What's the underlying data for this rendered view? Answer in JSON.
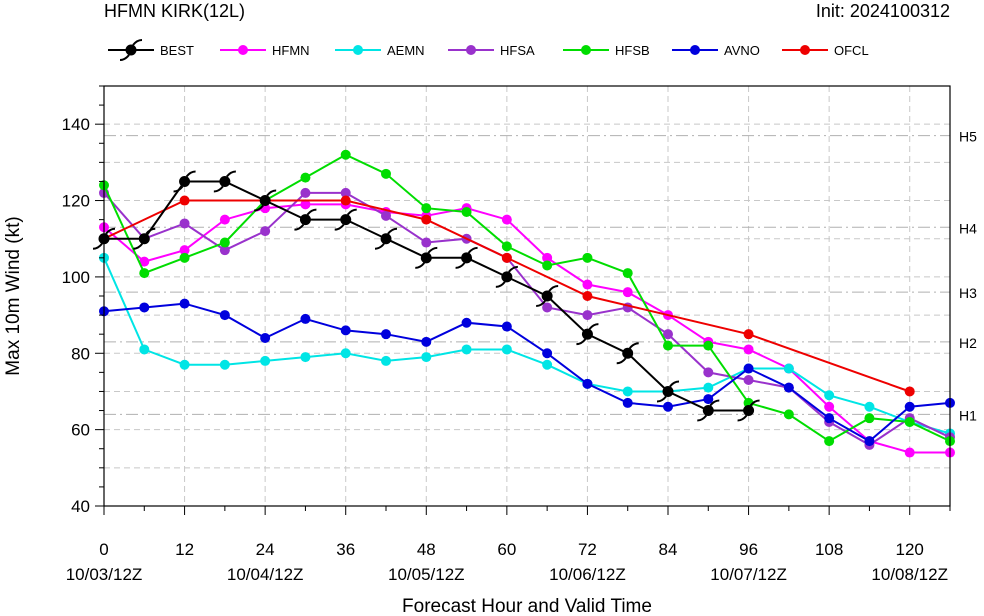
{
  "header": {
    "title": "HFMN KIRK(12L)",
    "init": "Init: 2024100312"
  },
  "chart_data": {
    "type": "line",
    "xlabel": "Forecast Hour and Valid Time",
    "ylabel": "Max 10m Wind (kt)",
    "xlim": [
      0,
      126
    ],
    "ylim": [
      40,
      150
    ],
    "x_ticks": [
      0,
      12,
      24,
      36,
      48,
      60,
      72,
      84,
      96,
      108,
      120
    ],
    "y_ticks": [
      40,
      60,
      80,
      100,
      120,
      140
    ],
    "x_date_labels": [
      {
        "x": 0,
        "label": "10/03/12Z"
      },
      {
        "x": 24,
        "label": "10/04/12Z"
      },
      {
        "x": 48,
        "label": "10/05/12Z"
      },
      {
        "x": 72,
        "label": "10/06/12Z"
      },
      {
        "x": 96,
        "label": "10/07/12Z"
      },
      {
        "x": 120,
        "label": "10/08/12Z"
      }
    ],
    "categories": [
      {
        "label": "H5",
        "threshold": 137
      },
      {
        "label": "H4",
        "threshold": 113
      },
      {
        "label": "H3",
        "threshold": 96
      },
      {
        "label": "H2",
        "threshold": 83
      },
      {
        "label": "H1",
        "threshold": 64
      }
    ],
    "grid": "dashed horizontal and vertical",
    "legend_position": "top",
    "series": [
      {
        "name": "BEST",
        "color": "#000000",
        "marker": "hurricane",
        "x": [
          0,
          6,
          12,
          18,
          24,
          30,
          36,
          42,
          48,
          54,
          60,
          66,
          72,
          78,
          84,
          90,
          96
        ],
        "y": [
          110,
          110,
          125,
          125,
          120,
          115,
          115,
          110,
          105,
          105,
          100,
          95,
          85,
          80,
          70,
          65,
          65
        ]
      },
      {
        "name": "HFMN",
        "color": "#ff00ff",
        "marker": "dot",
        "x": [
          0,
          6,
          12,
          18,
          24,
          30,
          36,
          42,
          48,
          54,
          60,
          66,
          72,
          78,
          84,
          90,
          96,
          102,
          108,
          114,
          120,
          126
        ],
        "y": [
          113,
          104,
          107,
          115,
          118,
          119,
          119,
          117,
          116,
          118,
          115,
          105,
          98,
          96,
          90,
          83,
          81,
          76,
          66,
          57,
          54,
          54
        ]
      },
      {
        "name": "AEMN",
        "color": "#00e5e5",
        "marker": "dot",
        "x": [
          0,
          6,
          12,
          18,
          24,
          30,
          36,
          42,
          48,
          54,
          60,
          66,
          72,
          78,
          84,
          90,
          96,
          102,
          108,
          114,
          120,
          126
        ],
        "y": [
          105,
          81,
          77,
          77,
          78,
          79,
          80,
          78,
          79,
          81,
          81,
          77,
          72,
          70,
          70,
          71,
          76,
          76,
          69,
          66,
          62,
          59
        ]
      },
      {
        "name": "HFSA",
        "color": "#9932cc",
        "marker": "dot",
        "x": [
          0,
          6,
          12,
          18,
          24,
          30,
          36,
          42,
          48,
          54,
          60,
          66,
          72,
          78,
          84,
          90,
          96,
          102,
          108,
          114,
          120,
          126
        ],
        "y": [
          122,
          110,
          114,
          107,
          112,
          122,
          122,
          116,
          109,
          110,
          105,
          92,
          90,
          92,
          85,
          75,
          73,
          71,
          62,
          56,
          63,
          58
        ]
      },
      {
        "name": "HFSB",
        "color": "#00dd00",
        "marker": "dot",
        "x": [
          0,
          6,
          12,
          18,
          24,
          30,
          36,
          42,
          48,
          54,
          60,
          66,
          72,
          78,
          84,
          90,
          96,
          102,
          108,
          114,
          120,
          126
        ],
        "y": [
          124,
          101,
          105,
          109,
          120,
          126,
          132,
          127,
          118,
          117,
          108,
          103,
          105,
          101,
          82,
          82,
          67,
          64,
          57,
          63,
          62,
          57
        ]
      },
      {
        "name": "AVNO",
        "color": "#0000dd",
        "marker": "dot",
        "x": [
          0,
          6,
          12,
          18,
          24,
          30,
          36,
          42,
          48,
          54,
          60,
          66,
          72,
          78,
          84,
          90,
          96,
          102,
          108,
          114,
          120,
          126
        ],
        "y": [
          91,
          92,
          93,
          90,
          84,
          89,
          86,
          85,
          83,
          88,
          87,
          80,
          72,
          67,
          66,
          68,
          76,
          71,
          63,
          57,
          66,
          67
        ]
      },
      {
        "name": "OFCL",
        "color": "#ee0000",
        "marker": "dot",
        "x": [
          0,
          12,
          24,
          36,
          48,
          60,
          72,
          96,
          120
        ],
        "y": [
          110,
          120,
          120,
          120,
          115,
          105,
          95,
          85,
          70
        ]
      }
    ]
  }
}
